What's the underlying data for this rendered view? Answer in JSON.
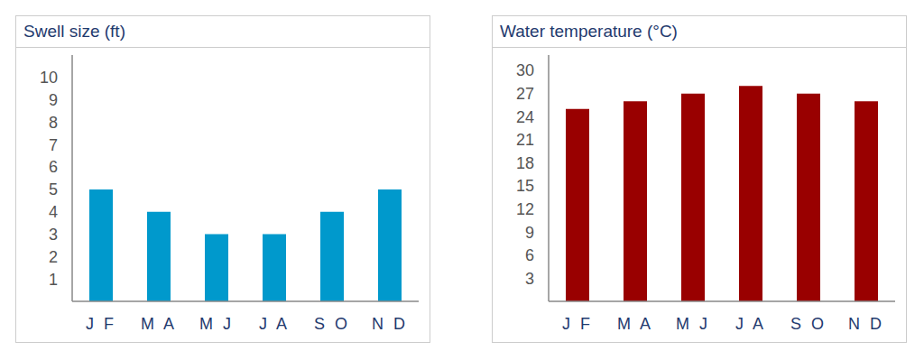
{
  "chart_data": [
    {
      "type": "bar",
      "title": "Swell size (ft)",
      "categories": [
        "J F",
        "M A",
        "M J",
        "J A",
        "S O",
        "N D"
      ],
      "values": [
        5,
        4,
        3,
        3,
        4,
        5
      ],
      "color": "#0099cc",
      "ylim": [
        0,
        11
      ],
      "yticks": [
        1,
        2,
        3,
        4,
        5,
        6,
        7,
        8,
        9,
        10
      ],
      "grid": false
    },
    {
      "type": "bar",
      "title": "Water temperature (°C)",
      "categories": [
        "J F",
        "M A",
        "M J",
        "J A",
        "S O",
        "N D"
      ],
      "values": [
        25,
        26,
        27,
        28,
        27,
        26
      ],
      "color": "#990000",
      "ylim": [
        0,
        32
      ],
      "yticks": [
        3,
        6,
        9,
        12,
        15,
        18,
        21,
        24,
        27,
        30
      ],
      "grid": false
    }
  ]
}
